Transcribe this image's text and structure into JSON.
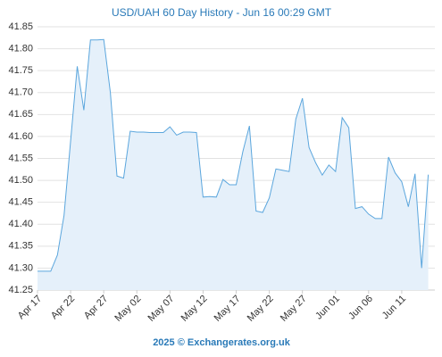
{
  "chart_data": {
    "type": "area",
    "title": "USD/UAH 60 Day History - Jun 16 00:29 GMT",
    "footer": "2025 © Exchangerates.org.uk",
    "categories": [
      "Apr 17",
      null,
      null,
      null,
      null,
      "Apr 22",
      null,
      null,
      null,
      null,
      "Apr 27",
      null,
      null,
      null,
      null,
      "May 02",
      null,
      null,
      null,
      null,
      "May 07",
      null,
      null,
      null,
      null,
      "May 12",
      null,
      null,
      null,
      null,
      "May 17",
      null,
      null,
      null,
      null,
      "May 22",
      null,
      null,
      null,
      null,
      "May 27",
      null,
      null,
      null,
      null,
      "Jun 01",
      null,
      null,
      null,
      null,
      "Jun 06",
      null,
      null,
      null,
      null,
      "Jun 11",
      null,
      null,
      null,
      null
    ],
    "values": [
      41.293,
      41.293,
      41.293,
      41.33,
      41.42,
      41.59,
      41.76,
      41.66,
      41.82,
      41.82,
      41.821,
      41.7,
      41.51,
      41.505,
      41.612,
      41.61,
      41.61,
      41.609,
      41.609,
      41.609,
      41.622,
      41.603,
      41.61,
      41.61,
      41.609,
      41.462,
      41.463,
      41.462,
      41.502,
      41.49,
      41.49,
      41.565,
      41.624,
      41.43,
      41.427,
      41.46,
      41.526,
      41.523,
      41.52,
      41.64,
      41.687,
      41.575,
      41.54,
      41.512,
      41.535,
      41.52,
      41.643,
      41.62,
      41.436,
      41.44,
      41.423,
      41.413,
      41.413,
      41.553,
      41.517,
      41.497,
      41.44,
      41.515,
      41.3,
      41.513
    ],
    "color": "#5ba6dd",
    "fill": "#e5f0fa",
    "ylim": [
      41.25,
      41.85
    ],
    "yticks": [
      41.25,
      {
        "value": 41.3,
        "label": "41.30"
      },
      41.35,
      {
        "value": 41.4,
        "label": "41.40"
      },
      41.45,
      {
        "value": 41.5,
        "label": "41.50"
      },
      41.55,
      {
        "value": 41.6,
        "label": "41.60"
      },
      41.65,
      {
        "value": 41.7,
        "label": "41.70"
      },
      41.75,
      {
        "value": 41.8,
        "label": "41.80"
      },
      41.85
    ],
    "grid": true
  }
}
